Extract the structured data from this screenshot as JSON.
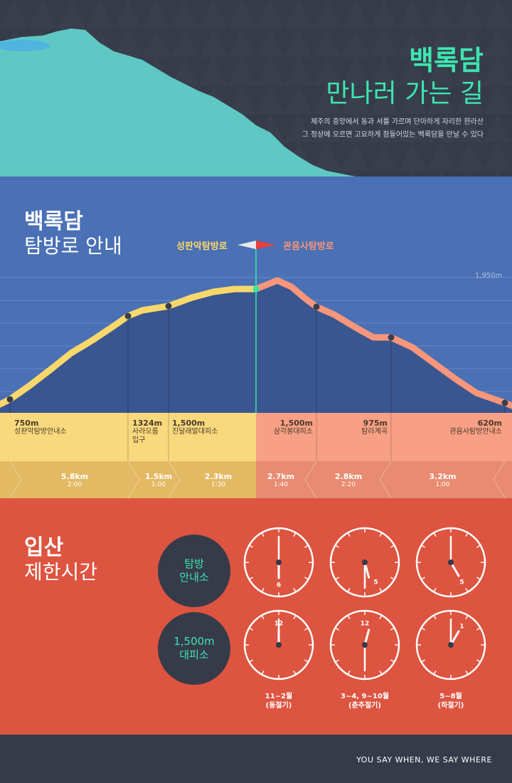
{
  "hero": {
    "title_line1": "백록담",
    "title_line2": "만나러 가는 길",
    "desc_line1": "제주의 중앙에서 동과 서를 가르며 단아하게 자리한 한라산",
    "desc_line2": "그 정상에 오르면 고요하게 잠들어있는 백록담을 만날 수 있다"
  },
  "trail": {
    "title_line1": "백록담",
    "title_line2": "탐방로 안내",
    "route_left": "성판악탐방로",
    "route_right": "관음사탐방로",
    "peak_label": "1,950m",
    "points": [
      {
        "altitude": "750m",
        "name": "성판악탐방안내소"
      },
      {
        "altitude": "1324m",
        "name_line1": "사라오름",
        "name_line2": "입구"
      },
      {
        "altitude": "1,500m",
        "name": "진달래발대피소"
      },
      {
        "altitude": "1,500m",
        "name": "삼각봉대피소"
      },
      {
        "altitude": "975m",
        "name": "탐라계곡"
      },
      {
        "altitude": "620m",
        "name": "관음사탐방안내소"
      }
    ],
    "segments": [
      {
        "distance": "5.8km",
        "time": "2:00"
      },
      {
        "distance": "1.5km",
        "time": "1:00"
      },
      {
        "distance": "2.3km",
        "time": "1:30"
      },
      {
        "distance": "2.7km",
        "time": "1:40"
      },
      {
        "distance": "2.8km",
        "time": "2:20"
      },
      {
        "distance": "3.2km",
        "time": "1:00"
      }
    ],
    "colors": {
      "left_route": "#f9d86b",
      "right_route": "#f7967b",
      "marker": "#34e8a4"
    }
  },
  "limit": {
    "title_line1": "입산",
    "title_line2": "제한시간",
    "row1": {
      "line1": "탐방",
      "line2": "안내소"
    },
    "row2": {
      "line1": "1,500m",
      "line2": "대피소"
    },
    "row1_clocks": [
      {
        "hour": 6,
        "minute": 0,
        "numeral": "6"
      },
      {
        "hour": 5,
        "minute": 30,
        "numeral": "5"
      },
      {
        "hour": 5,
        "minute": 0,
        "numeral": "5"
      }
    ],
    "row2_clocks": [
      {
        "hour": 12,
        "minute": 0,
        "numeral": "12"
      },
      {
        "hour": 12,
        "minute": 30,
        "numeral": "12"
      },
      {
        "hour": 1,
        "minute": 0,
        "numeral": "1"
      }
    ],
    "seasons": [
      {
        "line1": "11~2월",
        "line2": "(동절기)"
      },
      {
        "line1": "3~4, 9~10월",
        "line2": "(춘추절기)"
      },
      {
        "line1": "5~8월",
        "line2": "(하절기)"
      }
    ]
  },
  "footer": {
    "tagline": "YOU SAY WHEN, WE SAY WHERE"
  }
}
